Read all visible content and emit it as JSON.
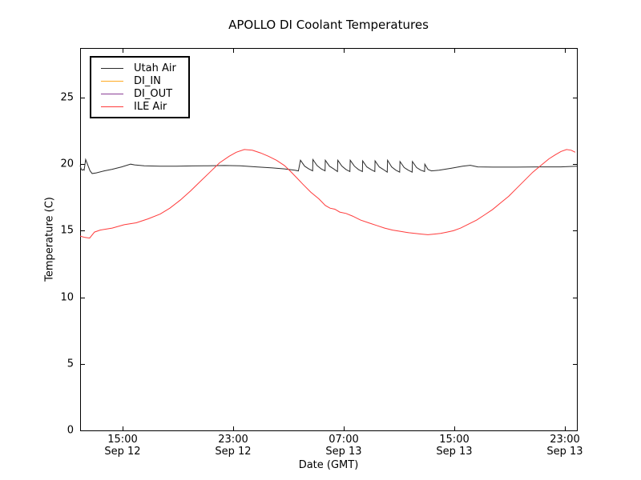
{
  "chart_data": {
    "type": "line",
    "title": "APOLLO DI Coolant Temperatures",
    "xlabel": "Date (GMT)",
    "ylabel": "Temperature (C)",
    "grid": false,
    "legend_position": "upper left",
    "xlim": [
      11.93,
      47.87
    ],
    "ylim": [
      0,
      28.73
    ],
    "x_unit": "hours since Sep 12 00:00 GMT",
    "yticks": [
      "0",
      "5",
      "10",
      "15",
      "20",
      "25"
    ],
    "ytick_values": [
      0,
      5,
      10,
      15,
      20,
      25
    ],
    "xticks": [
      {
        "value": 15,
        "time": "15:00",
        "date": "Sep 12"
      },
      {
        "value": 23,
        "time": "23:00",
        "date": "Sep 12"
      },
      {
        "value": 31,
        "time": "07:00",
        "date": "Sep 13"
      },
      {
        "value": 39,
        "time": "15:00",
        "date": "Sep 13"
      },
      {
        "value": 47,
        "time": "23:00",
        "date": "Sep 13"
      }
    ],
    "series": [
      {
        "name": "Utah Air",
        "color": "#2b2b2b",
        "points": [
          [
            11.93,
            19.9
          ],
          [
            12.0,
            19.65
          ],
          [
            12.08,
            19.55
          ],
          [
            12.16,
            19.6
          ],
          [
            12.22,
            19.55
          ],
          [
            12.33,
            20.35
          ],
          [
            12.5,
            19.9
          ],
          [
            12.65,
            19.5
          ],
          [
            12.8,
            19.3
          ],
          [
            13.1,
            19.35
          ],
          [
            13.67,
            19.5
          ],
          [
            14.25,
            19.62
          ],
          [
            14.94,
            19.8
          ],
          [
            15.58,
            20.0
          ],
          [
            15.87,
            19.95
          ],
          [
            16.57,
            19.88
          ],
          [
            17.72,
            19.85
          ],
          [
            18.88,
            19.85
          ],
          [
            20.04,
            19.87
          ],
          [
            21.2,
            19.88
          ],
          [
            22.36,
            19.9
          ],
          [
            23.52,
            19.88
          ],
          [
            24.68,
            19.8
          ],
          [
            25.84,
            19.72
          ],
          [
            26.71,
            19.65
          ],
          [
            27.46,
            19.55
          ],
          [
            27.72,
            19.5
          ],
          [
            27.87,
            20.3
          ],
          [
            28.17,
            19.85
          ],
          [
            28.47,
            19.65
          ],
          [
            28.75,
            19.5
          ],
          [
            28.77,
            20.35
          ],
          [
            29.07,
            19.9
          ],
          [
            29.37,
            19.65
          ],
          [
            29.65,
            19.5
          ],
          [
            29.67,
            20.3
          ],
          [
            29.97,
            19.85
          ],
          [
            30.27,
            19.65
          ],
          [
            30.55,
            19.45
          ],
          [
            30.57,
            20.3
          ],
          [
            30.87,
            19.85
          ],
          [
            31.17,
            19.6
          ],
          [
            31.45,
            19.45
          ],
          [
            31.47,
            20.3
          ],
          [
            31.77,
            19.85
          ],
          [
            32.07,
            19.6
          ],
          [
            32.35,
            19.45
          ],
          [
            32.37,
            20.25
          ],
          [
            32.67,
            19.8
          ],
          [
            32.97,
            19.6
          ],
          [
            33.25,
            19.45
          ],
          [
            33.27,
            20.25
          ],
          [
            33.57,
            19.8
          ],
          [
            33.87,
            19.6
          ],
          [
            34.15,
            19.4
          ],
          [
            34.17,
            20.3
          ],
          [
            34.47,
            19.8
          ],
          [
            34.77,
            19.55
          ],
          [
            35.05,
            19.4
          ],
          [
            35.07,
            20.2
          ],
          [
            35.37,
            19.75
          ],
          [
            35.67,
            19.55
          ],
          [
            35.95,
            19.4
          ],
          [
            35.97,
            20.2
          ],
          [
            36.27,
            19.75
          ],
          [
            36.57,
            19.55
          ],
          [
            36.85,
            19.45
          ],
          [
            36.87,
            20.0
          ],
          [
            37.1,
            19.6
          ],
          [
            37.35,
            19.5
          ],
          [
            37.9,
            19.55
          ],
          [
            38.8,
            19.7
          ],
          [
            39.6,
            19.85
          ],
          [
            40.16,
            19.92
          ],
          [
            40.7,
            19.8
          ],
          [
            41.8,
            19.78
          ],
          [
            43.5,
            19.78
          ],
          [
            45.3,
            19.8
          ],
          [
            46.7,
            19.8
          ],
          [
            47.87,
            19.85
          ]
        ]
      },
      {
        "name": "DI_IN",
        "color": "#ffaa22",
        "points": []
      },
      {
        "name": "DI_OUT",
        "color": "#8a3f96",
        "points": []
      },
      {
        "name": "ILE Air",
        "color": "#ff3b3b",
        "points": [
          [
            11.93,
            14.6
          ],
          [
            12.28,
            14.5
          ],
          [
            12.62,
            14.45
          ],
          [
            12.97,
            14.9
          ],
          [
            13.38,
            15.05
          ],
          [
            14.25,
            15.2
          ],
          [
            15.12,
            15.45
          ],
          [
            15.99,
            15.6
          ],
          [
            16.86,
            15.9
          ],
          [
            17.72,
            16.25
          ],
          [
            18.42,
            16.7
          ],
          [
            19.17,
            17.3
          ],
          [
            19.93,
            18.0
          ],
          [
            20.62,
            18.7
          ],
          [
            21.32,
            19.4
          ],
          [
            22.01,
            20.1
          ],
          [
            22.71,
            20.6
          ],
          [
            23.23,
            20.9
          ],
          [
            23.81,
            21.1
          ],
          [
            24.39,
            21.05
          ],
          [
            24.97,
            20.85
          ],
          [
            25.55,
            20.6
          ],
          [
            26.13,
            20.3
          ],
          [
            26.71,
            19.9
          ],
          [
            27.12,
            19.5
          ],
          [
            27.58,
            19.0
          ],
          [
            28.04,
            18.5
          ],
          [
            28.62,
            17.9
          ],
          [
            29.2,
            17.4
          ],
          [
            29.67,
            16.9
          ],
          [
            30.01,
            16.7
          ],
          [
            30.36,
            16.62
          ],
          [
            30.71,
            16.4
          ],
          [
            31.17,
            16.3
          ],
          [
            31.64,
            16.1
          ],
          [
            32.22,
            15.8
          ],
          [
            32.8,
            15.6
          ],
          [
            33.38,
            15.4
          ],
          [
            33.96,
            15.2
          ],
          [
            34.54,
            15.05
          ],
          [
            35.12,
            14.95
          ],
          [
            35.7,
            14.85
          ],
          [
            36.16,
            14.8
          ],
          [
            36.62,
            14.75
          ],
          [
            37.09,
            14.7
          ],
          [
            37.55,
            14.75
          ],
          [
            38.01,
            14.8
          ],
          [
            38.48,
            14.9
          ],
          [
            38.94,
            15.0
          ],
          [
            39.46,
            15.2
          ],
          [
            40.04,
            15.5
          ],
          [
            40.62,
            15.8
          ],
          [
            41.2,
            16.2
          ],
          [
            41.78,
            16.6
          ],
          [
            42.36,
            17.1
          ],
          [
            42.94,
            17.6
          ],
          [
            43.52,
            18.2
          ],
          [
            44.1,
            18.8
          ],
          [
            44.68,
            19.4
          ],
          [
            45.26,
            19.9
          ],
          [
            45.84,
            20.4
          ],
          [
            46.3,
            20.7
          ],
          [
            46.71,
            20.95
          ],
          [
            47.12,
            21.1
          ],
          [
            47.46,
            21.05
          ],
          [
            47.75,
            20.9
          ]
        ]
      }
    ],
    "axis_color": "#000000"
  }
}
